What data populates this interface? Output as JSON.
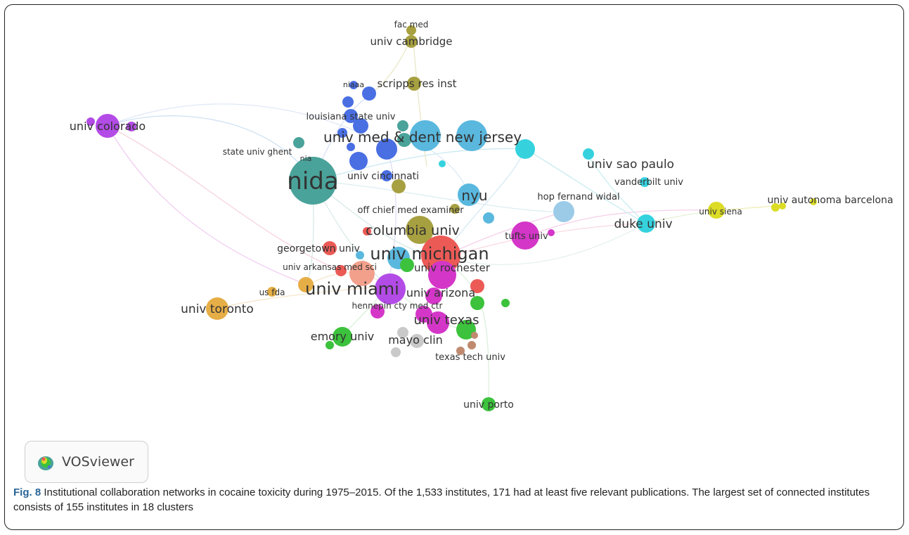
{
  "caption": {
    "label": "Fig. 8",
    "text": "Institutional collaboration networks in cocaine toxicity during 1975–2015. Of the 1,533 institutes, 171 had at least five relevant publications. The largest set of connected institutes consists of 155 institutes in 18 clusters"
  },
  "badge": {
    "name": "VOSviewer",
    "icon": "vosviewer-logo-icon"
  },
  "clusters": {
    "teal": "#4aa39a",
    "blue": "#4a6fe3",
    "lightblue": "#5ab8de",
    "cyan": "#35d2de",
    "olive": "#a7a040",
    "purple": "#b34be6",
    "magenta": "#d436c8",
    "red": "#ec5a56",
    "orange": "#e6ae46",
    "salmon": "#f2a08c",
    "green": "#3cc23c",
    "gray": "#c9c9c9",
    "brown": "#c08a70",
    "yellow": "#dcdc26",
    "paleblue": "#9ccbe8"
  },
  "nodes": {
    "fac_med": "fac med",
    "univ_cambridge": "univ cambridge",
    "niaaa": "niaaa",
    "scripps_res_inst": "scripps res inst",
    "louisiana_state_univ": "louisiana state univ",
    "univ_colorado": "univ colorado",
    "univ_med_dent_nj": "univ med & dent new jersey",
    "state_univ_ghent": "state univ ghent",
    "nia": "nia",
    "nida": "nida",
    "univ_cincinnati": "univ cincinnati",
    "univ_sao_paulo": "univ sao paulo",
    "vanderbilt_univ": "vanderbilt univ",
    "nyu": "nyu",
    "hop_fernand_widal": "hop fernand widal",
    "univ_autonoma_barcelona": "univ autonoma barcelona",
    "off_chief_med_examiner": "off chief med examiner",
    "univ_siena": "univ siena",
    "duke_univ": "duke univ",
    "columbia_univ": "columbia univ",
    "tufts_univ": "tufts univ",
    "georgetown_univ": "georgetown univ",
    "univ_michigan": "univ michigan",
    "univ_rochester": "univ rochester",
    "univ_arkansas_med_sci": "univ arkansas med sci",
    "us_fda": "us fda",
    "univ_miami": "univ miami",
    "univ_arizona": "univ arizona",
    "univ_toronto": "univ toronto",
    "hennepin_cty_med_ctr": "hennepin cty med ctr",
    "univ_texas": "univ texas",
    "emory_univ": "emory univ",
    "mayo_clin": "mayo clin",
    "texas_tech_univ": "texas tech univ",
    "univ_porto": "univ porto"
  }
}
